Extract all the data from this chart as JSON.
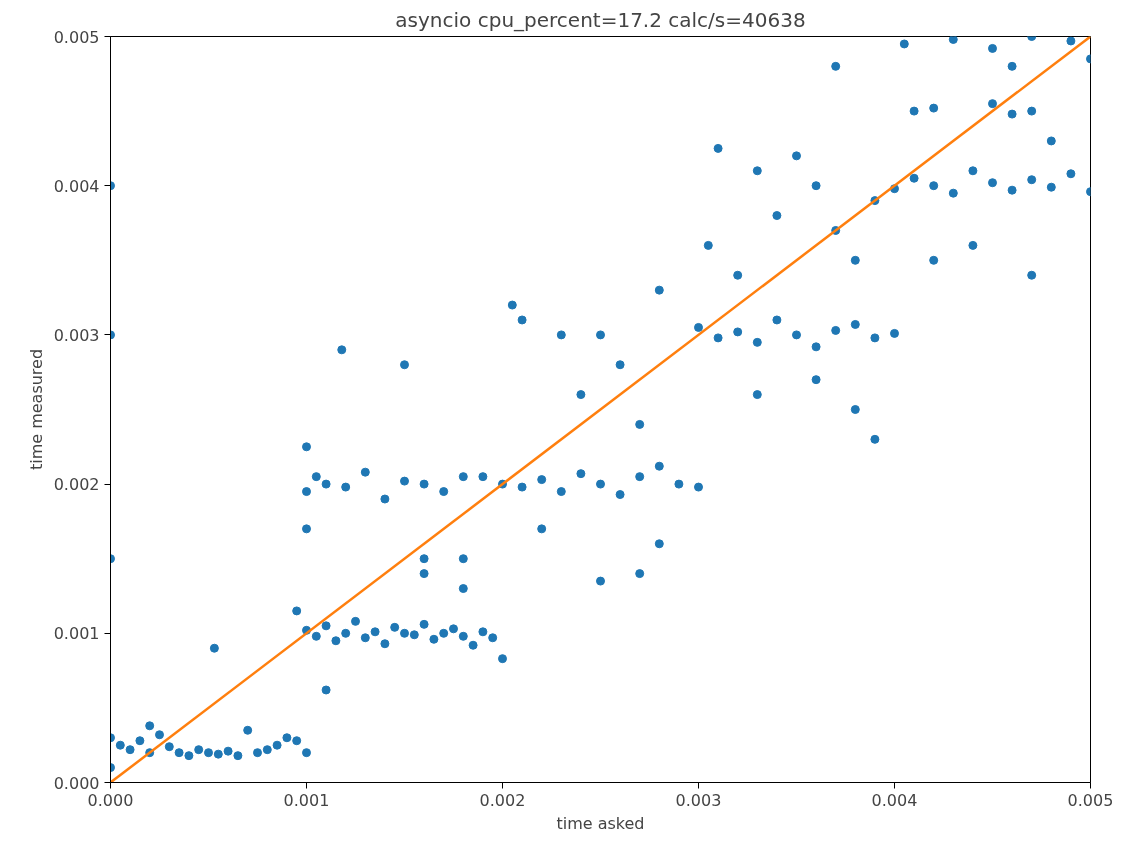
{
  "chart_data": {
    "type": "scatter",
    "title": "asyncio cpu_percent=17.2 calc/s=40638",
    "xlabel": "time asked",
    "ylabel": "time measured",
    "xlim": [
      0,
      0.005
    ],
    "ylim": [
      0,
      0.005
    ],
    "xticks": [
      {
        "value": 0,
        "label": "0.000"
      },
      {
        "value": 0.001,
        "label": "0.001"
      },
      {
        "value": 0.002,
        "label": "0.002"
      },
      {
        "value": 0.003,
        "label": "0.003"
      },
      {
        "value": 0.004,
        "label": "0.004"
      },
      {
        "value": 0.005,
        "label": "0.005"
      }
    ],
    "yticks": [
      {
        "value": 0,
        "label": "0.000"
      },
      {
        "value": 0.001,
        "label": "0.001"
      },
      {
        "value": 0.002,
        "label": "0.002"
      },
      {
        "value": 0.003,
        "label": "0.003"
      },
      {
        "value": 0.004,
        "label": "0.004"
      },
      {
        "value": 0.005,
        "label": "0.005"
      }
    ],
    "grid": false,
    "marker": "circle",
    "series": [
      {
        "color": "#1f77b4",
        "x": [
          0,
          5e-05,
          0.0001,
          0.00015,
          0.0002,
          0.00025,
          0.0003,
          0.00035,
          0.0004,
          0.00045,
          0.0005,
          0.00055,
          0.0006,
          0.00065,
          0.0007,
          0.00075,
          0.0008,
          0.00085,
          0.0009,
          0.00095,
          0.001,
          0.0002,
          0,
          0,
          0,
          0,
          0.00053,
          0.001,
          0.00105,
          0.0011,
          0.00115,
          0.0012,
          0.00125,
          0.0013,
          0.00135,
          0.0014,
          0.00145,
          0.0015,
          0.00155,
          0.0016,
          0.00165,
          0.0017,
          0.00175,
          0.0018,
          0.00185,
          0.0019,
          0.00195,
          0.002,
          0.001,
          0.00105,
          0.0011,
          0.0012,
          0.0013,
          0.0014,
          0.0015,
          0.0016,
          0.0017,
          0.0018,
          0.00118,
          0.0015,
          0.001,
          0.001,
          0.0011,
          0.0016,
          0.0016,
          0.0018,
          0.0018,
          0.00095,
          0.0019,
          0.002,
          0.0021,
          0.0022,
          0.0023,
          0.0024,
          0.0025,
          0.0026,
          0.0027,
          0.0028,
          0.0029,
          0.003,
          0.00205,
          0.0021,
          0.0023,
          0.0025,
          0.0026,
          0.0028,
          0.0024,
          0.0027,
          0.0025,
          0.0027,
          0.0028,
          0.0022,
          0.003,
          0.0031,
          0.0032,
          0.0033,
          0.0034,
          0.0035,
          0.0036,
          0.0037,
          0.0038,
          0.0039,
          0.004,
          0.0031,
          0.00305,
          0.0032,
          0.0033,
          0.0034,
          0.0035,
          0.0036,
          0.0037,
          0.0037,
          0.0038,
          0.0039,
          0.0033,
          0.0038,
          0.0039,
          0.0036,
          0.004,
          0.0041,
          0.0042,
          0.0043,
          0.0044,
          0.0045,
          0.0046,
          0.0047,
          0.0048,
          0.0049,
          0.005,
          0.0041,
          0.0042,
          0.0045,
          0.0046,
          0.0047,
          0.00405,
          0.0043,
          0.0045,
          0.0047,
          0.0049,
          0.0042,
          0.0044,
          0.0047,
          0.0048,
          0.0046,
          0.005
        ],
        "values": [
          0.0003,
          0.00025,
          0.00022,
          0.00028,
          0.0002,
          0.00032,
          0.00024,
          0.0002,
          0.00018,
          0.00022,
          0.0002,
          0.00019,
          0.00021,
          0.00018,
          0.00035,
          0.0002,
          0.00022,
          0.00025,
          0.0003,
          0.00028,
          0.0002,
          0.00038,
          0.0001,
          0.0015,
          0.003,
          0.004,
          0.0009,
          0.00102,
          0.00098,
          0.00105,
          0.00095,
          0.001,
          0.00108,
          0.00097,
          0.00101,
          0.00093,
          0.00104,
          0.001,
          0.00099,
          0.00106,
          0.00096,
          0.001,
          0.00103,
          0.00098,
          0.00092,
          0.00101,
          0.00097,
          0.00083,
          0.00195,
          0.00205,
          0.002,
          0.00198,
          0.00208,
          0.0019,
          0.00202,
          0.002,
          0.00195,
          0.00205,
          0.0029,
          0.0028,
          0.00225,
          0.0017,
          0.00062,
          0.0015,
          0.0014,
          0.0015,
          0.0013,
          0.00115,
          0.00205,
          0.002,
          0.00198,
          0.00203,
          0.00195,
          0.00207,
          0.002,
          0.00193,
          0.00205,
          0.00212,
          0.002,
          0.00198,
          0.0032,
          0.0031,
          0.003,
          0.003,
          0.0028,
          0.0033,
          0.0026,
          0.0024,
          0.00135,
          0.0014,
          0.0016,
          0.0017,
          0.00305,
          0.00298,
          0.00302,
          0.00295,
          0.0031,
          0.003,
          0.00292,
          0.00303,
          0.00307,
          0.00298,
          0.00301,
          0.00425,
          0.0036,
          0.0034,
          0.0041,
          0.0038,
          0.0042,
          0.004,
          0.0048,
          0.0037,
          0.0035,
          0.0039,
          0.0026,
          0.0025,
          0.0023,
          0.0027,
          0.00398,
          0.00405,
          0.004,
          0.00395,
          0.0041,
          0.00402,
          0.00397,
          0.00404,
          0.00399,
          0.00408,
          0.00396,
          0.0045,
          0.00452,
          0.00455,
          0.00448,
          0.0045,
          0.00495,
          0.00498,
          0.00492,
          0.005,
          0.00497,
          0.0035,
          0.0036,
          0.0034,
          0.0043,
          0.0048,
          0.00485
        ]
      },
      {
        "type": "line",
        "color": "#ff7f0e",
        "x": [
          0,
          0.005
        ],
        "values": [
          0,
          0.005
        ],
        "marker": "none"
      }
    ]
  }
}
